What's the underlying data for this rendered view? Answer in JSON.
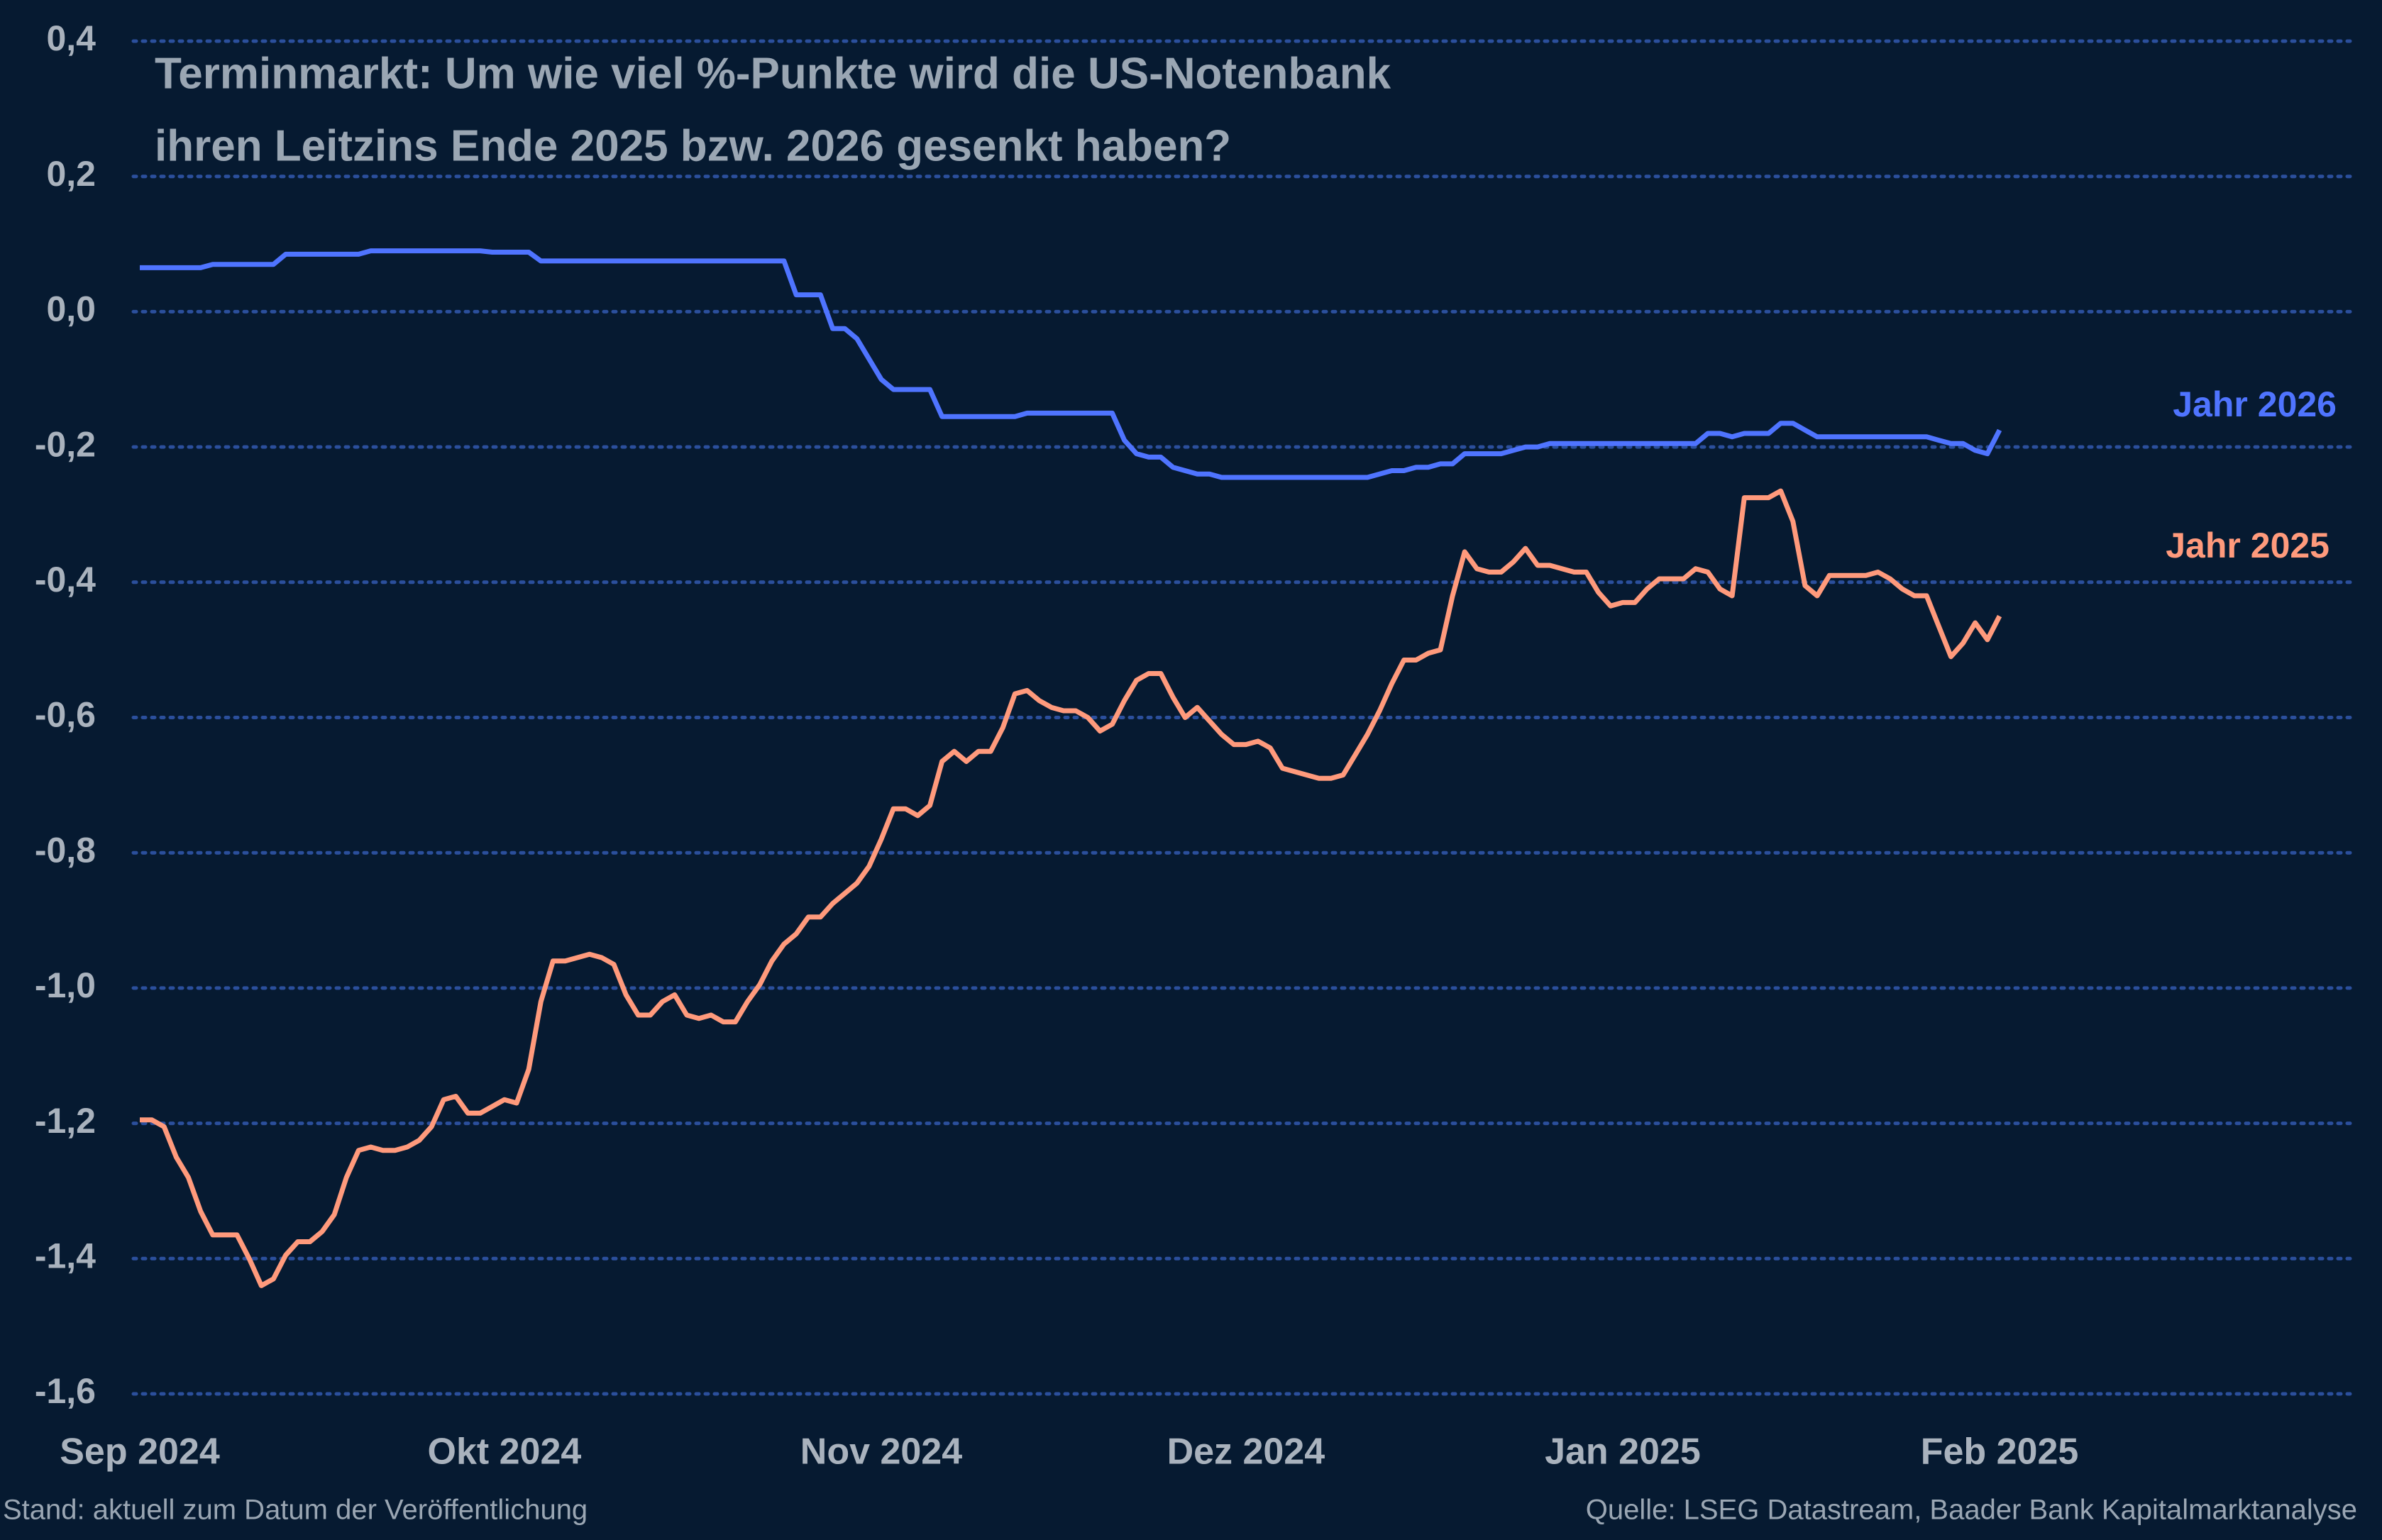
{
  "chart_data": {
    "type": "line",
    "title": [
      "Terminmarkt: Um wie viel %-Punkte wird die US-Notenbank",
      "ihren Leitzins Ende 2025 bzw. 2026 gesenkt haben?"
    ],
    "note": "Stand: aktuell zum Datum der Veröffentlichung",
    "source": "Quelle: LSEG Datastream, Baader Bank Kapitalmarktanalyse",
    "categories": [
      "Sep 2024",
      null,
      null,
      null,
      null,
      null,
      null,
      null,
      null,
      null,
      null,
      null,
      null,
      null,
      null,
      null,
      null,
      null,
      null,
      null,
      null,
      null,
      null,
      null,
      null,
      null,
      null,
      null,
      null,
      null,
      "Okt 2024",
      null,
      null,
      null,
      null,
      null,
      null,
      null,
      null,
      null,
      null,
      null,
      null,
      null,
      null,
      null,
      null,
      null,
      null,
      null,
      null,
      null,
      null,
      null,
      null,
      null,
      null,
      null,
      null,
      null,
      null,
      "Nov 2024",
      null,
      null,
      null,
      null,
      null,
      null,
      null,
      null,
      null,
      null,
      null,
      null,
      null,
      null,
      null,
      null,
      null,
      null,
      null,
      null,
      null,
      null,
      null,
      null,
      null,
      null,
      null,
      null,
      null,
      "Dez 2024",
      null,
      null,
      null,
      null,
      null,
      null,
      null,
      null,
      null,
      null,
      null,
      null,
      null,
      null,
      null,
      null,
      null,
      null,
      null,
      null,
      null,
      null,
      null,
      null,
      null,
      null,
      null,
      null,
      null,
      null,
      "Jan 2025",
      null,
      null,
      null,
      null,
      null,
      null,
      null,
      null,
      null,
      null,
      null,
      null,
      null,
      null,
      null,
      null,
      null,
      null,
      null,
      null,
      null,
      null,
      null,
      null,
      null,
      null,
      null,
      null,
      null,
      null,
      "Feb 2025"
    ],
    "series": [
      {
        "name": "Jahr 2026",
        "color": "#4f74ff",
        "values": [
          0.065,
          0.065,
          0.065,
          0.065,
          0.065,
          0.065,
          0.07,
          0.07,
          0.07,
          0.07,
          0.07,
          0.07,
          0.085,
          0.085,
          0.085,
          0.085,
          0.085,
          0.085,
          0.085,
          0.09,
          0.09,
          0.09,
          0.09,
          0.09,
          0.09,
          0.09,
          0.09,
          0.09,
          0.09,
          0.088,
          0.088,
          0.088,
          0.088,
          0.075,
          0.075,
          0.075,
          0.075,
          0.075,
          0.075,
          0.075,
          0.075,
          0.075,
          0.075,
          0.075,
          0.075,
          0.075,
          0.075,
          0.075,
          0.075,
          0.075,
          0.075,
          0.075,
          0.075,
          0.075,
          0.025,
          0.025,
          0.025,
          -0.025,
          -0.025,
          -0.04,
          -0.07,
          -0.1,
          -0.115,
          -0.115,
          -0.115,
          -0.115,
          -0.155,
          -0.155,
          -0.155,
          -0.155,
          -0.155,
          -0.155,
          -0.155,
          -0.15,
          -0.15,
          -0.15,
          -0.15,
          -0.15,
          -0.15,
          -0.15,
          -0.15,
          -0.19,
          -0.21,
          -0.215,
          -0.215,
          -0.23,
          -0.235,
          -0.24,
          -0.24,
          -0.245,
          -0.245,
          -0.245,
          -0.245,
          -0.245,
          -0.245,
          -0.245,
          -0.245,
          -0.245,
          -0.245,
          -0.245,
          -0.245,
          -0.245,
          -0.24,
          -0.235,
          -0.235,
          -0.23,
          -0.23,
          -0.225,
          -0.225,
          -0.21,
          -0.21,
          -0.21,
          -0.21,
          -0.205,
          -0.2,
          -0.2,
          -0.195,
          -0.195,
          -0.195,
          -0.195,
          -0.195,
          -0.195,
          -0.195,
          -0.195,
          -0.195,
          -0.195,
          -0.195,
          -0.195,
          -0.195,
          -0.18,
          -0.18,
          -0.185,
          -0.18,
          -0.18,
          -0.18,
          -0.165,
          -0.165,
          -0.175,
          -0.185,
          -0.185,
          -0.185,
          -0.185,
          -0.185,
          -0.185,
          -0.185,
          -0.185,
          -0.185,
          -0.185,
          -0.19,
          -0.195,
          -0.195,
          -0.205,
          -0.21,
          -0.175
        ]
      },
      {
        "name": "Jahr 2025",
        "color": "#ff9a7c",
        "values": [
          -1.195,
          -1.195,
          -1.205,
          -1.25,
          -1.28,
          -1.33,
          -1.365,
          -1.365,
          -1.365,
          -1.4,
          -1.44,
          -1.43,
          -1.395,
          -1.375,
          -1.375,
          -1.36,
          -1.335,
          -1.28,
          -1.24,
          -1.235,
          -1.24,
          -1.24,
          -1.235,
          -1.225,
          -1.205,
          -1.165,
          -1.16,
          -1.185,
          -1.185,
          -1.175,
          -1.165,
          -1.17,
          -1.12,
          -1.02,
          -0.96,
          -0.96,
          -0.955,
          -0.95,
          -0.955,
          -0.965,
          -1.01,
          -1.04,
          -1.04,
          -1.02,
          -1.01,
          -1.04,
          -1.045,
          -1.04,
          -1.05,
          -1.05,
          -1.02,
          -0.995,
          -0.96,
          -0.935,
          -0.92,
          -0.895,
          -0.895,
          -0.875,
          -0.86,
          -0.845,
          -0.82,
          -0.78,
          -0.735,
          -0.735,
          -0.745,
          -0.73,
          -0.665,
          -0.65,
          -0.665,
          -0.65,
          -0.65,
          -0.615,
          -0.565,
          -0.56,
          -0.575,
          -0.585,
          -0.59,
          -0.59,
          -0.6,
          -0.62,
          -0.61,
          -0.575,
          -0.545,
          -0.535,
          -0.535,
          -0.57,
          -0.6,
          -0.585,
          -0.605,
          -0.625,
          -0.64,
          -0.64,
          -0.635,
          -0.645,
          -0.675,
          -0.68,
          -0.685,
          -0.69,
          -0.69,
          -0.685,
          -0.655,
          -0.625,
          -0.59,
          -0.55,
          -0.515,
          -0.515,
          -0.505,
          -0.5,
          -0.42,
          -0.355,
          -0.38,
          -0.385,
          -0.385,
          -0.37,
          -0.35,
          -0.375,
          -0.375,
          -0.38,
          -0.385,
          -0.385,
          -0.415,
          -0.435,
          -0.43,
          -0.43,
          -0.41,
          -0.395,
          -0.395,
          -0.395,
          -0.38,
          -0.385,
          -0.41,
          -0.42,
          -0.275,
          -0.275,
          -0.275,
          -0.265,
          -0.31,
          -0.405,
          -0.42,
          -0.39,
          -0.39,
          -0.39,
          -0.39,
          -0.385,
          -0.395,
          -0.41,
          -0.42,
          -0.42,
          -0.465,
          -0.51,
          -0.49,
          -0.46,
          -0.485,
          -0.45
        ]
      }
    ],
    "ylim": [
      -1.6,
      0.4
    ],
    "yticks": [
      {
        "value": -1.6,
        "label": "-1,6"
      },
      {
        "value": -1.4,
        "label": "-1,4"
      },
      {
        "value": -1.2,
        "label": "-1,2"
      },
      {
        "value": -1.0,
        "label": "-1,0"
      },
      {
        "value": -0.8,
        "label": "-0,8"
      },
      {
        "value": -0.6,
        "label": "-0,6"
      },
      {
        "value": -0.4,
        "label": "-0,4"
      },
      {
        "value": -0.2,
        "label": "-0,2"
      },
      {
        "value": 0,
        "label": "0,0"
      },
      {
        "value": 0.2,
        "label": "0,2"
      },
      {
        "value": 0.4,
        "label": "0,4"
      }
    ],
    "grid": true
  }
}
